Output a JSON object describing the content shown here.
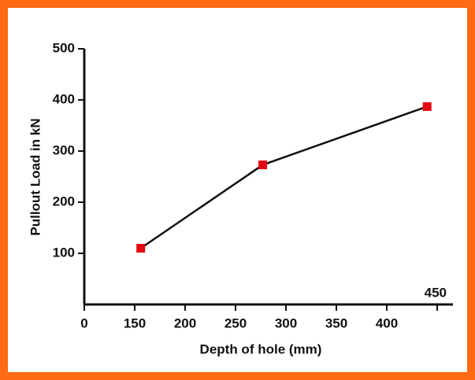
{
  "chart_data": {
    "type": "line",
    "x_label": "Depth of hole (mm)",
    "y_label": "Pullout Load in kN",
    "x": [
      156,
      277,
      440
    ],
    "series": [
      {
        "name": "Pullout load",
        "color": "#e30613",
        "line_color": "#111111",
        "values": [
          110,
          273,
          387
        ]
      }
    ],
    "xlim": [
      100,
      450
    ],
    "xticks": [
      {
        "value": 100,
        "label": "0"
      },
      150,
      200,
      250,
      300,
      350,
      400,
      450
    ],
    "ylim": [
      0,
      500
    ],
    "yticks": [
      100,
      200,
      300,
      400,
      500
    ],
    "grid": false
  }
}
